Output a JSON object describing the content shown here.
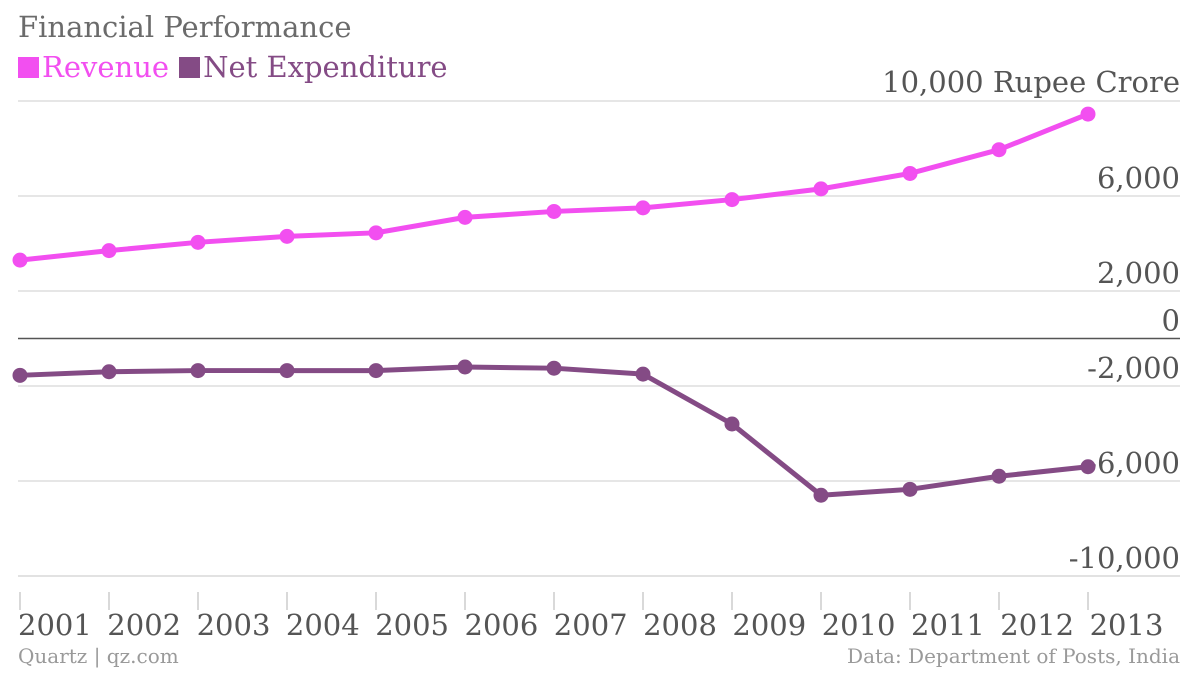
{
  "chart_data": {
    "type": "line",
    "title": "Financial Performance",
    "ylabel": "10,000 Rupee Crore",
    "x": [
      "2001",
      "2002",
      "2003",
      "2004",
      "2005",
      "2006",
      "2007",
      "2008",
      "2009",
      "2010",
      "2011",
      "2012",
      "2013"
    ],
    "y_ticks": [
      6000,
      2000,
      0,
      -2000,
      -6000,
      -10000
    ],
    "y_tick_labels": [
      "6,000",
      "2,000",
      "0",
      "-2,000",
      "-6,000",
      "-10,000"
    ],
    "ylim": [
      -10000,
      10000
    ],
    "grid": true,
    "series": [
      {
        "name": "Revenue",
        "color": "#f24ff0",
        "values": [
          3300,
          3700,
          4050,
          4300,
          4450,
          5100,
          5350,
          5500,
          5850,
          6300,
          6950,
          7950,
          9450
        ]
      },
      {
        "name": "Net Expenditure",
        "color": "#844b85",
        "values": [
          -1550,
          -1400,
          -1350,
          -1350,
          -1350,
          -1200,
          -1250,
          -1500,
          -3600,
          -6600,
          -6350,
          -5800,
          -5400
        ]
      }
    ]
  },
  "credits": {
    "left": "Quartz | qz.com",
    "right": "Data: Department of Posts, India"
  },
  "colors": {
    "title": "#6b6b6b",
    "axis_text": "#555555",
    "grid": "#dddddd",
    "zero_line": "#555555",
    "credit": "#9a9a9a"
  }
}
